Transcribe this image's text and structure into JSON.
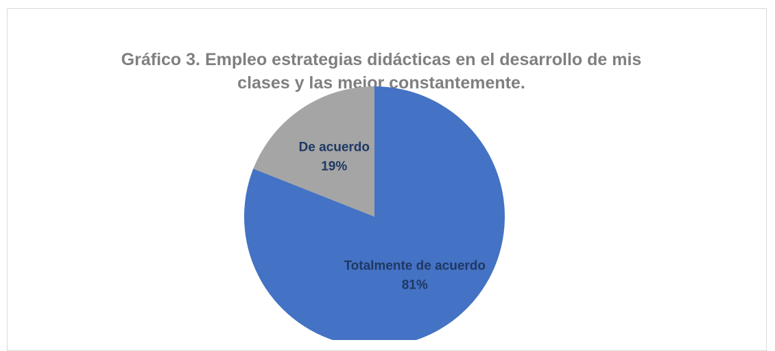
{
  "chart_data": {
    "type": "pie",
    "title": "Gráfico 3. Empleo estrategias didácticas en el desarrollo de mis clases y las mejor constantemente.",
    "categories": [
      "Totalmente de acuerdo",
      "De acuerdo"
    ],
    "values": [
      81,
      19
    ],
    "value_labels": [
      "81%",
      "19%"
    ],
    "colors": [
      "#4472c4",
      "#a5a5a5"
    ]
  }
}
